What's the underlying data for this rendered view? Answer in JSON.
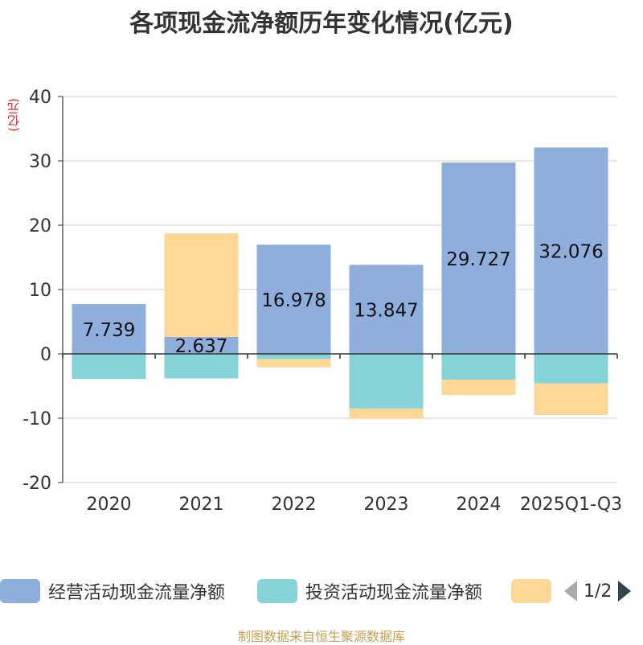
{
  "title": "各项现金流净额历年变化情况(亿元)",
  "unit_label": "(亿元)",
  "source": "制图数据来自恒生聚源数据库",
  "legend": {
    "items": [
      {
        "label": "经营活动现金流量净额",
        "color": "#8eaedb"
      },
      {
        "label": "投资活动现金流量净额",
        "color": "#86d4d8"
      },
      {
        "label": "",
        "color": "#fed797"
      }
    ],
    "pager": "1/2"
  },
  "chart_data": {
    "type": "bar",
    "stacked": true,
    "categories": [
      "2020",
      "2021",
      "2022",
      "2023",
      "2024",
      "2025Q1-Q3"
    ],
    "ylim": [
      -20,
      40
    ],
    "yticks": [
      40,
      30,
      20,
      10,
      0,
      -10,
      -20
    ],
    "series": [
      {
        "name": "经营活动现金流量净额",
        "color": "#8eaedb",
        "values": [
          7.739,
          2.637,
          16.978,
          13.847,
          29.727,
          32.076
        ],
        "labels": [
          "7.739",
          "2.637",
          "16.978",
          "13.847",
          "29.727",
          "32.076"
        ]
      },
      {
        "name": "投资活动现金流量净额",
        "color": "#86d4d8",
        "values": [
          -3.9,
          -3.8,
          -0.8,
          -8.5,
          -4.0,
          -4.6
        ]
      },
      {
        "name": "",
        "color": "#fed797",
        "values": [
          0,
          16.1,
          -1.3,
          -1.6,
          -2.4,
          -4.9
        ]
      }
    ]
  }
}
